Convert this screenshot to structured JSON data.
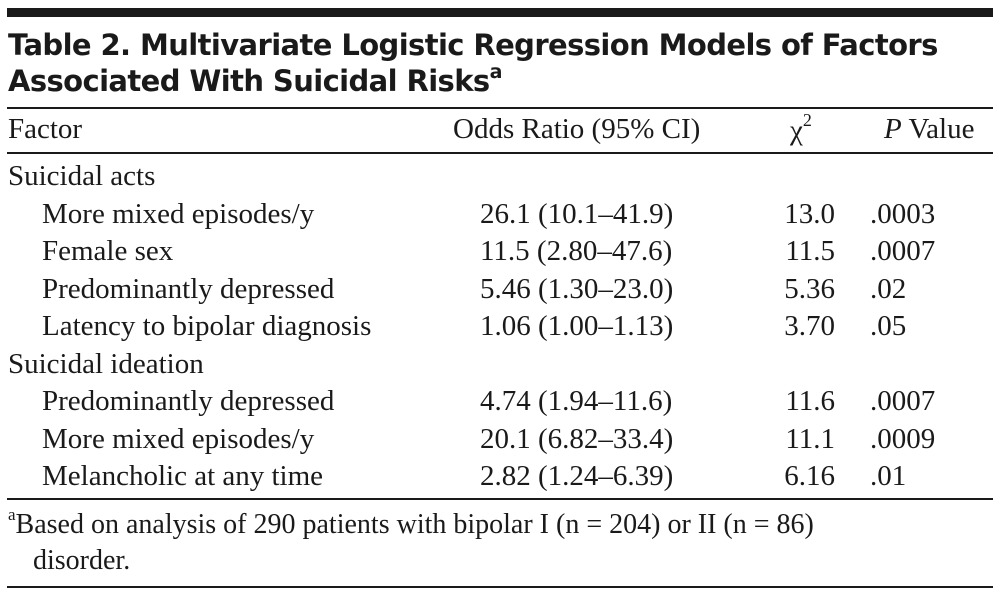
{
  "table": {
    "title": "Table 2. Multivariate Logistic Regression Models of Factors Associated With Suicidal Risks",
    "title_line1": "Table 2. Multivariate Logistic Regression Models of Factors",
    "title_line2": "Associated With Suicidal Risks",
    "title_footnote_marker": "a",
    "columns": {
      "factor": "Factor",
      "odds_ratio": "Odds Ratio (95% CI)",
      "chi_symbol": "χ",
      "chi_superscript": "2",
      "p_italic": "P",
      "p_rest": " Value"
    },
    "sections": [
      {
        "label": "Suicidal acts",
        "rows": [
          {
            "factor": "More mixed episodes/y",
            "odds_ratio": "26.1 (10.1–41.9)",
            "chi2": "13.0",
            "p": ".0003"
          },
          {
            "factor": "Female sex",
            "odds_ratio": "11.5 (2.80–47.6)",
            "chi2": "11.5",
            "p": ".0007"
          },
          {
            "factor": "Predominantly depressed",
            "odds_ratio": "5.46 (1.30–23.0)",
            "chi2": "5.36",
            "p": ".02"
          },
          {
            "factor": "Latency to bipolar diagnosis",
            "odds_ratio": "1.06 (1.00–1.13)",
            "chi2": "3.70",
            "p": ".05"
          }
        ]
      },
      {
        "label": "Suicidal ideation",
        "rows": [
          {
            "factor": "Predominantly depressed",
            "odds_ratio": "4.74 (1.94–11.6)",
            "chi2": "11.6",
            "p": ".0007"
          },
          {
            "factor": "More mixed episodes/y",
            "odds_ratio": "20.1 (6.82–33.4)",
            "chi2": "11.1",
            "p": ".0009"
          },
          {
            "factor": "Melancholic at any time",
            "odds_ratio": "2.82 (1.24–6.39)",
            "chi2": "6.16",
            "p": ".01"
          }
        ]
      }
    ],
    "footnote": {
      "marker": "a",
      "line1": "Based on analysis of 290 patients with bipolar I (n = 204) or II (n = 86)",
      "line2": "disorder."
    }
  }
}
